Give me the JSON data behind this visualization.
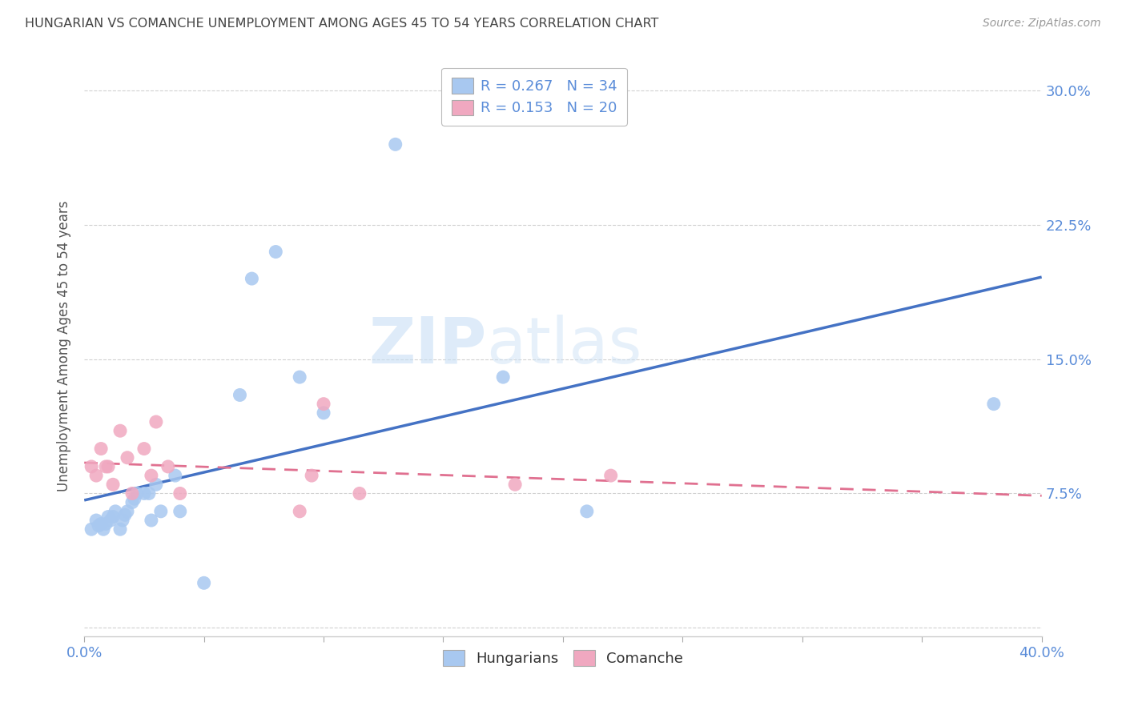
{
  "title": "HUNGARIAN VS COMANCHE UNEMPLOYMENT AMONG AGES 45 TO 54 YEARS CORRELATION CHART",
  "source": "Source: ZipAtlas.com",
  "ylabel": "Unemployment Among Ages 45 to 54 years",
  "xlim": [
    0.0,
    0.4
  ],
  "ylim": [
    -0.005,
    0.32
  ],
  "xticks": [
    0.0,
    0.05,
    0.1,
    0.15,
    0.2,
    0.25,
    0.3,
    0.35,
    0.4
  ],
  "ytick_values": [
    0.0,
    0.075,
    0.15,
    0.225,
    0.3
  ],
  "ytick_labels": [
    "",
    "7.5%",
    "15.0%",
    "22.5%",
    "30.0%"
  ],
  "background_color": "#ffffff",
  "grid_color": "#cccccc",
  "hungarian_color": "#a8c8f0",
  "comanche_color": "#f0a8c0",
  "line_color_hungarian": "#4472c4",
  "line_color_comanche": "#e07090",
  "hungarian_R": 0.267,
  "hungarian_N": 34,
  "comanche_R": 0.153,
  "comanche_N": 20,
  "watermark_zip": "ZIP",
  "watermark_atlas": "atlas",
  "title_color": "#444444",
  "axis_label_color": "#5b8dd9",
  "axis_tick_color": "#5b8dd9",
  "hungarian_x": [
    0.003,
    0.005,
    0.006,
    0.007,
    0.008,
    0.009,
    0.01,
    0.011,
    0.012,
    0.013,
    0.015,
    0.016,
    0.017,
    0.018,
    0.02,
    0.021,
    0.022,
    0.025,
    0.027,
    0.028,
    0.03,
    0.032,
    0.038,
    0.04,
    0.05,
    0.065,
    0.07,
    0.08,
    0.09,
    0.1,
    0.13,
    0.175,
    0.21,
    0.38
  ],
  "hungarian_y": [
    0.055,
    0.06,
    0.057,
    0.058,
    0.055,
    0.058,
    0.062,
    0.06,
    0.062,
    0.065,
    0.055,
    0.06,
    0.063,
    0.065,
    0.07,
    0.072,
    0.075,
    0.075,
    0.075,
    0.06,
    0.08,
    0.065,
    0.085,
    0.065,
    0.025,
    0.13,
    0.195,
    0.21,
    0.14,
    0.12,
    0.27,
    0.14,
    0.065,
    0.125
  ],
  "comanche_x": [
    0.003,
    0.005,
    0.007,
    0.009,
    0.01,
    0.012,
    0.015,
    0.018,
    0.02,
    0.025,
    0.028,
    0.03,
    0.035,
    0.04,
    0.09,
    0.095,
    0.1,
    0.115,
    0.18,
    0.22
  ],
  "comanche_y": [
    0.09,
    0.085,
    0.1,
    0.09,
    0.09,
    0.08,
    0.11,
    0.095,
    0.075,
    0.1,
    0.085,
    0.115,
    0.09,
    0.075,
    0.065,
    0.085,
    0.125,
    0.075,
    0.08,
    0.085
  ]
}
